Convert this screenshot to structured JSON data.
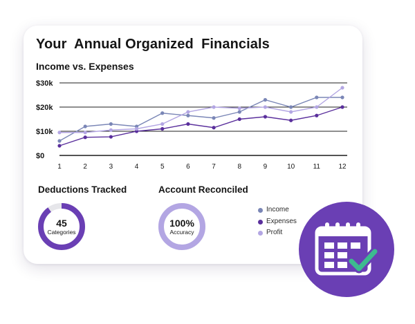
{
  "header": {
    "title": "Your  Annual Organized  Financials",
    "subtitle": "Income vs. Expenses"
  },
  "colors": {
    "income": "#7a86b6",
    "expenses": "#5a2f9c",
    "profit": "#b3a6e3",
    "accent": "#6a3fb4",
    "check": "#3dbb8f",
    "ring_track": "#e6e6ea"
  },
  "chart_data": {
    "type": "line",
    "title": "Income vs. Expenses",
    "xlabel": "",
    "ylabel": "",
    "categories": [
      "1",
      "2",
      "3",
      "4",
      "5",
      "6",
      "7",
      "8",
      "9",
      "10",
      "11",
      "12"
    ],
    "y_ticks": [
      "$0",
      "$10k",
      "$20k",
      "$30k"
    ],
    "ylim": [
      0,
      30000
    ],
    "grid": true,
    "legend_position": "right",
    "series": [
      {
        "name": "Income",
        "values": [
          6000,
          12000,
          13000,
          12000,
          17500,
          16500,
          15500,
          18000,
          23000,
          20000,
          24000,
          24000
        ]
      },
      {
        "name": "Expenses",
        "values": [
          4000,
          7500,
          7700,
          10000,
          11000,
          13000,
          11500,
          15000,
          16000,
          14500,
          16500,
          20000
        ]
      },
      {
        "name": "Profit",
        "values": [
          9500,
          9500,
          10500,
          11000,
          13000,
          18000,
          20000,
          19500,
          20000,
          18000,
          20000,
          28000
        ]
      }
    ]
  },
  "deductions": {
    "title": "Deductions Tracked",
    "value": "45",
    "caption": "Categories",
    "fill_fraction": 0.9
  },
  "reconciled": {
    "title": "Account Reconciled",
    "value": "100%",
    "caption": "Accuracy",
    "fill_fraction": 1.0
  },
  "legend": {
    "items": [
      "Income",
      "Expenses",
      "Profit"
    ]
  },
  "badge": {
    "icon": "calendar-check-icon"
  }
}
